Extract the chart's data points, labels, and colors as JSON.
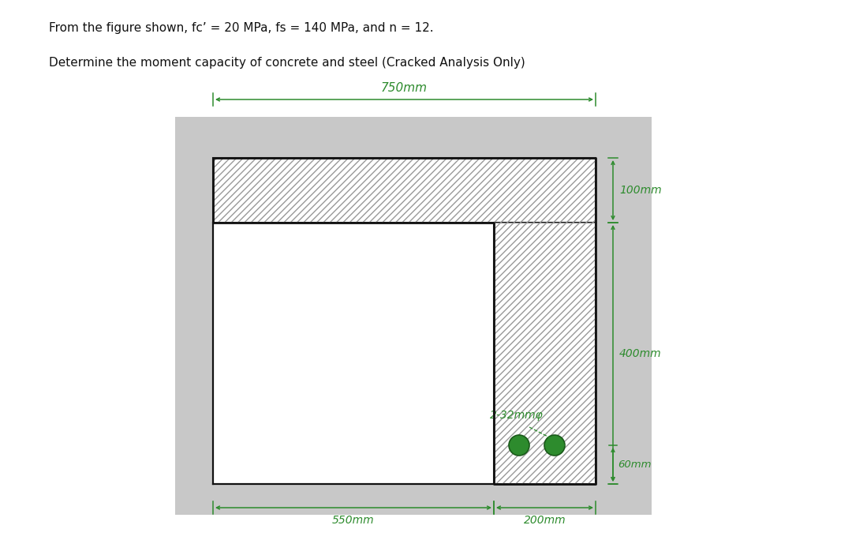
{
  "line1": "From the figure shown, fc’ = 20 MPa, fs = 140 MPa, and n = 12.",
  "line2": "Determine the moment capacity of concrete and steel (Cracked Analysis Only)",
  "dim_750": "750mm",
  "dim_100": "100mm",
  "dim_400": "400mm",
  "dim_550": "550mm",
  "dim_200": "200mm",
  "dim_60": "60mm",
  "dim_bars": "2-32mmφ",
  "card_bg": "#c8c8c8",
  "hatch_color": "#888888",
  "green": "#2d8b2d",
  "black": "#111111",
  "bar_color": "#2d8b2d",
  "fig_w": 10.8,
  "fig_h": 6.89,
  "dpi": 100
}
